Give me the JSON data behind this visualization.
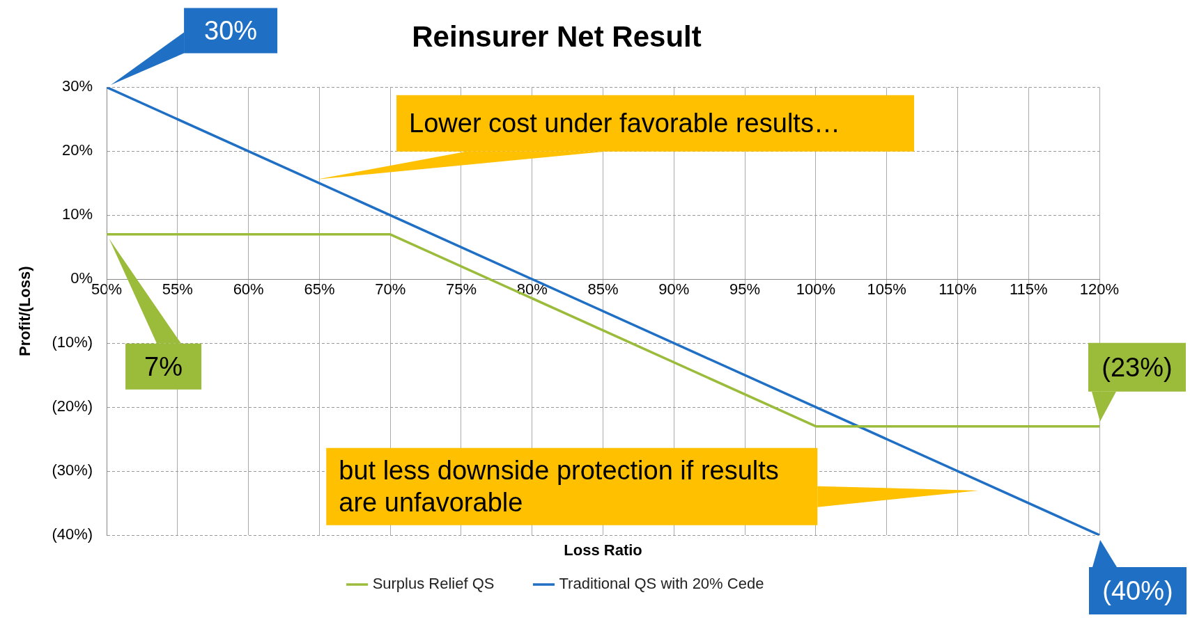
{
  "chart_data": {
    "type": "line",
    "title": "Reinsurer Net Result",
    "xlabel": "Loss Ratio",
    "ylabel": "Profit/(Loss)",
    "xlim": [
      50,
      120
    ],
    "xticks": [
      {
        "value": 50,
        "label": "50%"
      },
      {
        "value": 55,
        "label": "55%"
      },
      {
        "value": 60,
        "label": "60%"
      },
      {
        "value": 65,
        "label": "65%"
      },
      {
        "value": 70,
        "label": "70%"
      },
      {
        "value": 75,
        "label": "75%"
      },
      {
        "value": 80,
        "label": "80%"
      },
      {
        "value": 85,
        "label": "85%"
      },
      {
        "value": 90,
        "label": "90%"
      },
      {
        "value": 95,
        "label": "95%"
      },
      {
        "value": 100,
        "label": "100%"
      },
      {
        "value": 105,
        "label": "105%"
      },
      {
        "value": 110,
        "label": "110%"
      },
      {
        "value": 115,
        "label": "115%"
      },
      {
        "value": 120,
        "label": "120%"
      }
    ],
    "ylim": [
      -40,
      30
    ],
    "yticks": [
      {
        "value": -40,
        "label": "(40%)"
      },
      {
        "value": -30,
        "label": "(30%)"
      },
      {
        "value": -20,
        "label": "(20%)"
      },
      {
        "value": -10,
        "label": "(10%)"
      },
      {
        "value": 0,
        "label": "0%"
      },
      {
        "value": 10,
        "label": "10%"
      },
      {
        "value": 20,
        "label": "20%"
      },
      {
        "value": 30,
        "label": "30%"
      }
    ],
    "series": [
      {
        "name": "Surplus Relief QS",
        "color": "#9bbb3b",
        "x": [
          50,
          70,
          100,
          120
        ],
        "values": [
          7,
          7,
          -23,
          -23
        ]
      },
      {
        "name": "Traditional QS with 20% Cede",
        "color": "#1f6fc5",
        "x": [
          50,
          120
        ],
        "values": [
          30,
          -40
        ]
      }
    ],
    "annotations": [
      "30%",
      "7%",
      "(23%)",
      "(40%)",
      "Lower cost under favorable results…",
      "but less downside protection if results are unfavorable"
    ],
    "grid": true,
    "legend": "bottom",
    "marker": "none",
    "line_style": "solid"
  }
}
